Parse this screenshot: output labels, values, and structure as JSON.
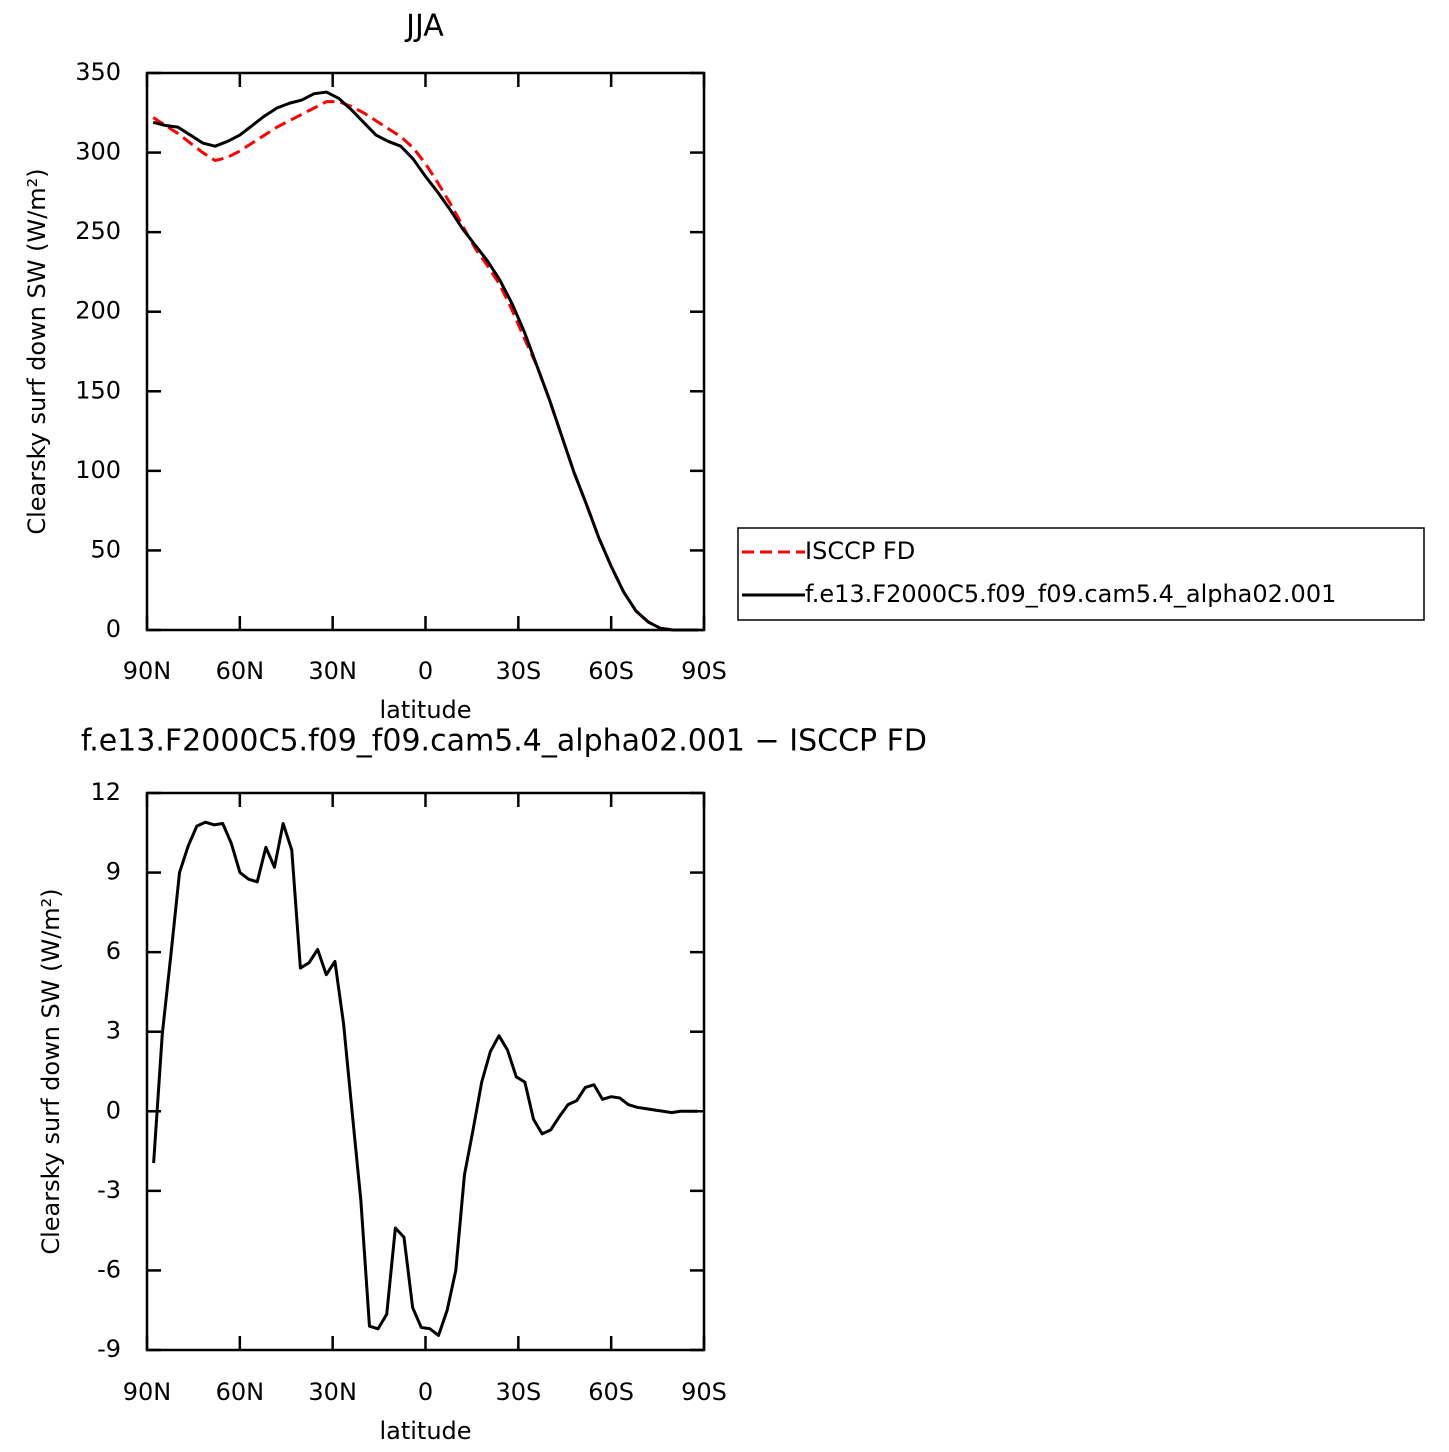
{
  "chart_data": [
    {
      "type": "line",
      "title": "JJA",
      "xlabel": "latitude",
      "ylabel": "Clearsky surf down SW (W/m²)",
      "x": [
        88,
        84,
        80,
        76,
        72,
        68,
        64,
        60,
        56,
        52,
        48,
        44,
        40,
        36,
        32,
        28,
        24,
        20,
        16,
        12,
        8,
        4,
        0,
        -4,
        -8,
        -12,
        -16,
        -20,
        -24,
        -28,
        -32,
        -36,
        -40,
        -44,
        -48,
        -52,
        -56,
        -60,
        -64,
        -68,
        -72,
        -76,
        -80,
        -84,
        -88
      ],
      "series": [
        {
          "name": "ISCCP FD",
          "color": "#ff0000",
          "line_style": "dashed",
          "values": [
            322,
            317,
            312,
            306,
            300,
            295,
            297,
            301,
            306,
            311,
            316,
            320,
            324,
            328,
            332,
            332,
            329,
            325,
            320,
            315,
            310,
            303,
            293,
            281,
            268,
            254,
            240,
            229,
            217,
            201,
            183,
            166,
            145,
            122,
            99,
            79,
            58,
            40,
            24,
            12,
            5,
            1,
            0,
            0,
            0
          ]
        },
        {
          "name": "f.e13.F2000C5.f09_f09.cam5.4_alpha02.001",
          "color": "#000000",
          "line_style": "solid",
          "values": [
            319,
            317,
            316,
            311,
            306,
            304,
            307,
            311,
            317,
            323,
            328,
            331,
            333,
            337,
            338,
            334,
            327,
            319,
            311,
            307,
            304,
            296,
            285,
            275,
            264,
            252,
            242,
            232,
            220,
            205,
            187,
            166,
            145,
            122,
            99,
            79,
            58,
            40,
            24,
            12,
            5,
            1,
            0,
            0,
            0
          ]
        }
      ],
      "xlim": [
        90,
        -90
      ],
      "xticks": [
        {
          "value": 90,
          "label": "90N"
        },
        {
          "value": 60,
          "label": "60N"
        },
        {
          "value": 30,
          "label": "30N"
        },
        0,
        {
          "value": -30,
          "label": "30S"
        },
        {
          "value": -60,
          "label": "60S"
        },
        {
          "value": -90,
          "label": "90S"
        }
      ],
      "ylim": [
        0,
        350
      ],
      "yticks": [
        0,
        50,
        100,
        150,
        200,
        250,
        300,
        350
      ],
      "legend": "right"
    },
    {
      "type": "line",
      "title": "f.e13.F2000C5.f09_f09.cam5.4_alpha02.001 − ISCCP FD",
      "xlabel": "latitude",
      "ylabel": "Clearsky surf down SW (W/m²)",
      "x": [
        87.86,
        85.07,
        82.28,
        79.49,
        76.7,
        73.91,
        71.12,
        68.33,
        65.54,
        62.75,
        59.96,
        57.17,
        54.38,
        51.59,
        48.8,
        46.01,
        43.22,
        40.43,
        37.64,
        34.85,
        32.06,
        29.27,
        26.48,
        23.69,
        20.9,
        18.11,
        15.32,
        12.53,
        9.74,
        6.95,
        4.16,
        1.37,
        -1.42,
        -4.21,
        -7.0,
        -9.79,
        -12.58,
        -15.37,
        -18.16,
        -20.95,
        -23.74,
        -26.53,
        -29.32,
        -32.11,
        -34.9,
        -37.69,
        -40.48,
        -43.27,
        -46.06,
        -48.85,
        -51.64,
        -54.43,
        -57.22,
        -60.01,
        -62.8,
        -65.59,
        -68.38,
        -71.17,
        -73.96,
        -76.75,
        -79.54,
        -82.33,
        -85.12,
        -87.91
      ],
      "series": [
        {
          "color": "#000000",
          "line_style": "solid",
          "values": [
            -1.95,
            2.9,
            5.9,
            9.0,
            10.0,
            10.75,
            10.9,
            10.8,
            10.85,
            10.1,
            9.0,
            8.75,
            8.65,
            9.95,
            9.2,
            10.85,
            9.85,
            5.4,
            5.6,
            6.1,
            5.15,
            5.65,
            3.3,
            -0.05,
            -3.35,
            -8.1,
            -8.2,
            -7.65,
            -4.4,
            -4.75,
            -7.4,
            -8.15,
            -8.2,
            -8.45,
            -7.5,
            -6.0,
            -2.4,
            -0.7,
            1.1,
            2.25,
            2.85,
            2.3,
            1.3,
            1.1,
            -0.3,
            -0.85,
            -0.7,
            -0.2,
            0.25,
            0.4,
            0.9,
            1.0,
            0.45,
            0.55,
            0.5,
            0.25,
            0.15,
            0.1,
            0.05,
            0.0,
            -0.05,
            0,
            0,
            0
          ]
        }
      ],
      "xlim": [
        90,
        -90
      ],
      "xticks": [
        {
          "value": 90,
          "label": "90N"
        },
        {
          "value": 60,
          "label": "60N"
        },
        {
          "value": 30,
          "label": "30N"
        },
        0,
        {
          "value": -30,
          "label": "30S"
        },
        {
          "value": -60,
          "label": "60S"
        },
        {
          "value": -90,
          "label": "90S"
        }
      ],
      "ylim": [
        -9,
        12
      ],
      "yticks": [
        -9,
        -6,
        -3,
        0,
        3,
        6,
        9,
        12
      ]
    }
  ]
}
